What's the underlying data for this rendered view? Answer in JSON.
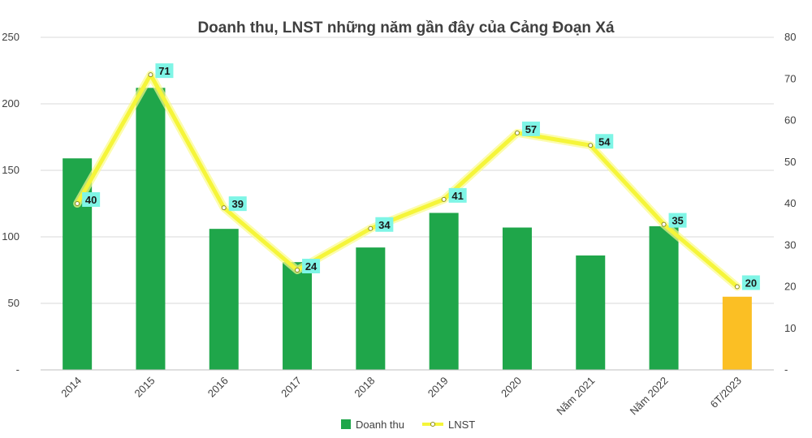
{
  "chart_data": {
    "type": "bar",
    "title": "Doanh thu, LNST những năm gần đây của Cảng Đoạn Xá",
    "categories": [
      "2014",
      "2015",
      "2016",
      "2017",
      "2018",
      "2019",
      "2020",
      "Năm 2021",
      "Năm 2022",
      "6T/2023"
    ],
    "series": [
      {
        "name": "Doanh thu",
        "type": "bar",
        "axis": "left",
        "color": "#1fa64a",
        "highlight_color": "#fbbf24",
        "highlight_index": 9,
        "values": [
          159,
          212,
          106,
          81,
          92,
          118,
          107,
          86,
          108,
          55
        ]
      },
      {
        "name": "LNST",
        "type": "line",
        "axis": "right",
        "color": "#f5f53a",
        "label_bg": "#7ff5e6",
        "values": [
          40,
          71,
          39,
          24,
          34,
          41,
          57,
          54,
          35,
          20
        ],
        "labels": [
          "40",
          "71",
          "39",
          "24",
          "34",
          "41",
          "57",
          "54",
          "35",
          "20"
        ]
      }
    ],
    "y_left": {
      "ylim": [
        0,
        250
      ],
      "ticks": [
        "-",
        "50",
        "100",
        "150",
        "200",
        "250"
      ]
    },
    "y_right": {
      "ylim": [
        0,
        80
      ],
      "ticks": [
        "-",
        "10",
        "20",
        "30",
        "40",
        "50",
        "60",
        "70",
        "80"
      ]
    },
    "grid": true,
    "legend": "bottom-center"
  }
}
